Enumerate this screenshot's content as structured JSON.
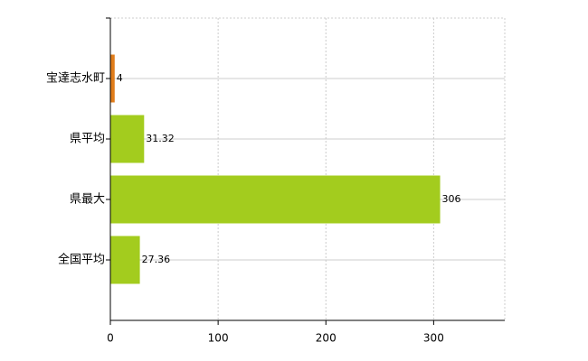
{
  "chart_data": {
    "type": "bar",
    "orientation": "horizontal",
    "categories": [
      "宝達志水町",
      "県平均",
      "県最大",
      "全国平均"
    ],
    "values": [
      4,
      31.32,
      306,
      27.36
    ],
    "colors": [
      "#e07c1a",
      "#a3cc1e",
      "#a3cc1e",
      "#a3cc1e"
    ],
    "xlim": [
      0,
      366
    ],
    "xticks": [
      0,
      100,
      200,
      300
    ],
    "grid": true
  }
}
